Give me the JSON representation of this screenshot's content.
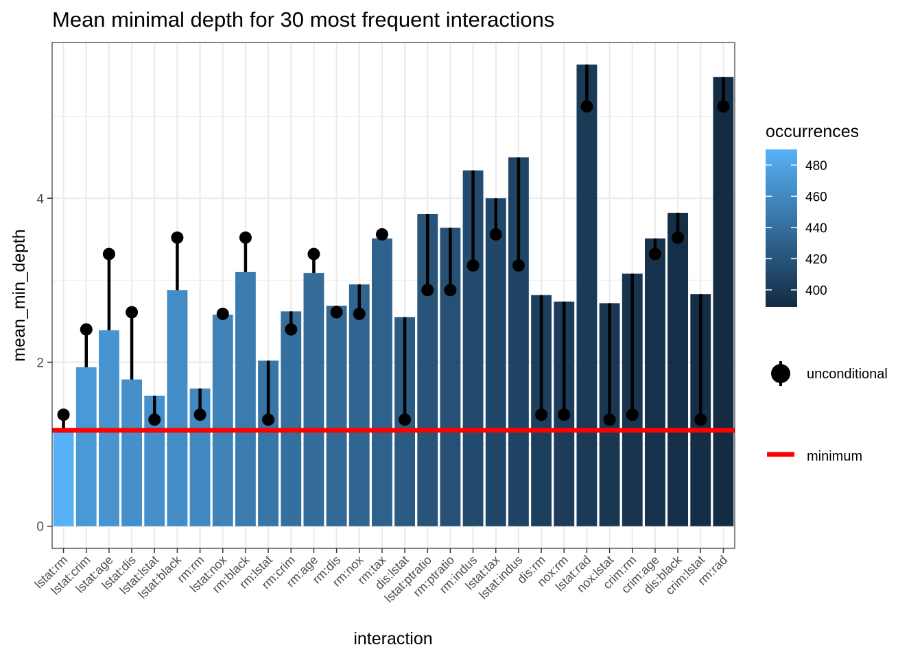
{
  "chart_data": {
    "type": "bar",
    "title": "Mean minimal depth for 30 most frequent interactions",
    "xlabel": "interaction",
    "ylabel": "mean_min_depth",
    "ylim": [
      -0.27,
      5.9
    ],
    "yticks": [
      0,
      2,
      4
    ],
    "grid": true,
    "categories": [
      "lstat:rm",
      "lstat:crim",
      "lstat:age",
      "lstat:dis",
      "lstat:lstat",
      "lstat:black",
      "rm:rm",
      "lstat:nox",
      "rm:black",
      "rm:lstat",
      "rm:crim",
      "rm:age",
      "rm:dis",
      "rm:nox",
      "rm:tax",
      "dis:lstat",
      "lstat:ptratio",
      "rm:ptratio",
      "rm:indus",
      "lstat:tax",
      "lstat:indus",
      "dis:rm",
      "nox:rm",
      "lstat:rad",
      "nox:lstat",
      "crim:rm",
      "crim:age",
      "dis:black",
      "crim:lstat",
      "rm:rad"
    ],
    "series": [
      {
        "name": "mean_min_depth",
        "values": [
          1.17,
          1.94,
          2.39,
          1.79,
          1.59,
          2.88,
          1.68,
          2.58,
          3.1,
          2.02,
          2.62,
          3.09,
          2.69,
          2.95,
          3.51,
          2.55,
          3.81,
          3.64,
          4.34,
          4.0,
          4.5,
          2.82,
          2.74,
          5.63,
          2.72,
          3.08,
          3.51,
          3.82,
          2.83,
          5.48
        ]
      },
      {
        "name": "unconditional",
        "values": [
          1.36,
          2.4,
          3.32,
          2.61,
          1.3,
          3.52,
          1.36,
          2.59,
          3.52,
          1.3,
          2.4,
          3.32,
          2.61,
          2.59,
          3.56,
          1.3,
          2.88,
          2.88,
          3.18,
          3.56,
          3.18,
          1.36,
          1.36,
          5.12,
          1.3,
          1.36,
          3.32,
          3.52,
          1.3,
          5.12
        ]
      }
    ],
    "occurrences": [
      490,
      472,
      468,
      465,
      465,
      462,
      460,
      455,
      450,
      445,
      440,
      438,
      436,
      433,
      430,
      425,
      420,
      417,
      413,
      410,
      408,
      404,
      402,
      400,
      398,
      396,
      394,
      392,
      391,
      389
    ],
    "minimum": 1.17,
    "colorbar": {
      "title": "occurrences",
      "range": [
        389,
        490
      ],
      "ticks": [
        400,
        420,
        440,
        460,
        480
      ],
      "low_color": "#132b43",
      "high_color": "#56b1f7"
    },
    "legend": {
      "position": "right",
      "unconditional_label": "unconditional",
      "minimum_label": "minimum"
    },
    "colors": {
      "point": "#000000",
      "minimum_line": "#ff0000",
      "grid": "#ebebeb",
      "panel_border": "#333333"
    }
  }
}
